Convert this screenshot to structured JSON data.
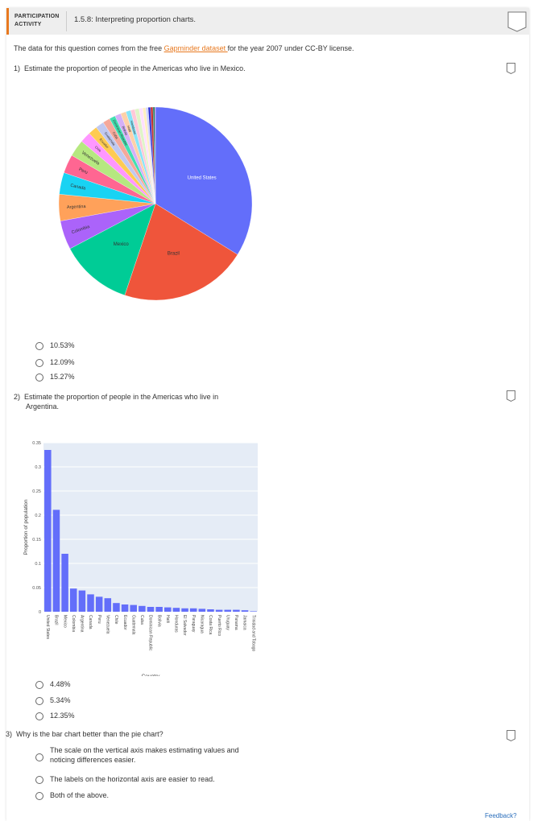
{
  "header": {
    "label_line1": "PARTICIPATION",
    "label_line2": "ACTIVITY",
    "title": "1.5.8: Interpreting proportion charts.",
    "accent_color": "#e8791f"
  },
  "intro": {
    "prefix": "The data for this question comes from the free ",
    "link_text": "Gapminder dataset ",
    "suffix": "for the year 2007 under CC-BY license."
  },
  "questions": [
    {
      "number": "1)",
      "text": "Estimate the proportion of people in the Americas who live in Mexico.",
      "options": [
        "10.53%",
        "12.09%",
        "15.27%"
      ]
    },
    {
      "number": "2)",
      "text_line1": "Estimate the proportion of people in the Americas who live in",
      "text_line2": "Argentina.",
      "options": [
        "4.48%",
        "5.34%",
        "12.35%"
      ]
    },
    {
      "number": "3)",
      "text": "Why is the bar chart better than the pie chart?",
      "options": [
        "The scale on the vertical axis makes estimating values and noticing differences easier.",
        "The labels on the horizontal axis are easier to read.",
        "Both of the above."
      ],
      "option1_line1": "The scale on the vertical axis makes estimating values and",
      "option1_line2": "noticing differences easier."
    }
  ],
  "feedback_link": "Feedback?",
  "chart_data": [
    {
      "type": "pie",
      "title": "",
      "labels": [
        "United States",
        "Brazil",
        "Mexico",
        "Colombia",
        "Argentina",
        "Canada",
        "Peru",
        "Venezuela",
        "Chile",
        "Ecuador",
        "Guatemala",
        "Cuba",
        "Dominican Republic",
        "Bolivia",
        "Haiti",
        "Honduras",
        "El Salvador",
        "Paraguay",
        "Nicaragua",
        "Costa Rica",
        "Puerto Rico",
        "Uruguay",
        "Panama",
        "Jamaica",
        "Trinidad and Tobago"
      ],
      "values": [
        0.335,
        0.211,
        0.12,
        0.048,
        0.044,
        0.036,
        0.031,
        0.028,
        0.018,
        0.015,
        0.014,
        0.012,
        0.01,
        0.01,
        0.009,
        0.008,
        0.007,
        0.007,
        0.006,
        0.005,
        0.004,
        0.004,
        0.004,
        0.003,
        0.001
      ],
      "colors": [
        "#636efa",
        "#ef553b",
        "#00cc96",
        "#ab63fa",
        "#ffa15a",
        "#19d3f3",
        "#ff6692",
        "#b6e880",
        "#ff97ff",
        "#fecb52",
        "#c0c8f0",
        "#f5a89a",
        "#40e0b0",
        "#d4b0f8",
        "#ffd0a8",
        "#88e4f8",
        "#ffc8d8",
        "#e0f4c8",
        "#ffe0ff",
        "#fff0c0",
        "#d0d4ff",
        "#3030d0",
        "#c03030",
        "#208060",
        "#8040c0"
      ]
    },
    {
      "type": "bar",
      "title": "",
      "xlabel": "Country",
      "ylabel": "Proportion of population",
      "ylim": [
        0,
        0.35
      ],
      "yticks": [
        "0",
        "0.05",
        "0.1",
        "0.15",
        "0.2",
        "0.25",
        "0.3",
        "0.35"
      ],
      "grid": true,
      "categories": [
        "United States",
        "Brazil",
        "Mexico",
        "Colombia",
        "Argentina",
        "Canada",
        "Peru",
        "Venezuela",
        "Chile",
        "Ecuador",
        "Guatemala",
        "Cuba",
        "Dominican Republic",
        "Bolivia",
        "Haiti",
        "Honduras",
        "El Salvador",
        "Paraguay",
        "Nicaragua",
        "Costa Rica",
        "Puerto Rico",
        "Uruguay",
        "Panama",
        "Jamaica",
        "Trinidad and Tobago"
      ],
      "values": [
        0.335,
        0.211,
        0.12,
        0.048,
        0.044,
        0.036,
        0.031,
        0.028,
        0.018,
        0.015,
        0.014,
        0.012,
        0.01,
        0.01,
        0.009,
        0.008,
        0.007,
        0.007,
        0.006,
        0.005,
        0.004,
        0.004,
        0.004,
        0.003,
        0.001
      ],
      "bar_color": "#636efa"
    }
  ]
}
